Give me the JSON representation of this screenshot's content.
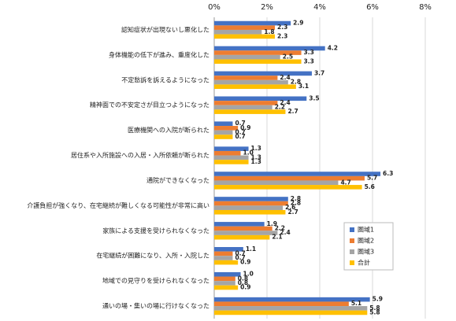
{
  "chart_data": {
    "type": "bar",
    "orientation": "horizontal",
    "categories": [
      "認知症状が出現ないし悪化した",
      "身体機能の低下が進み、重度化した",
      "不定愁訴を訴えるようになった",
      "精神面での不安定さが目立つようになった",
      "医療機関への入院が断られた",
      "居住系や入所施設への入居・入所依頼が断られた",
      "通院ができなくなった",
      "介護負担が強くなり、在宅継続が難しくなる可能性が非常に高い",
      "家族による支援を受けられなくなった",
      "在宅継続が困難になり、入所・入院した",
      "地域での見守りを受けられなくなった",
      "通いの場・集いの場に行けなくなった"
    ],
    "series": [
      {
        "name": "圏域1",
        "color": "#4472c4",
        "values": [
          2.9,
          4.2,
          3.7,
          3.5,
          0.7,
          1.3,
          6.3,
          2.8,
          1.9,
          1.1,
          1.0,
          5.9
        ],
        "value_labels": [
          "2.9",
          "4.2",
          "3.7",
          "3.5",
          "0.7",
          "1.3",
          "6.3",
          "2.8",
          "1.9",
          "1.1",
          "1.0",
          "5.9"
        ]
      },
      {
        "name": "圏域2",
        "color": "#ed7d31",
        "values": [
          2.3,
          3.3,
          2.4,
          2.4,
          0.9,
          1.0,
          5.7,
          2.8,
          2.2,
          0.7,
          0.8,
          5.1
        ],
        "value_labels": [
          "2.3",
          "3.3",
          "2.4",
          "2.4",
          "0.9",
          "1.0",
          "5.7",
          "2.8",
          "2.2",
          "0.7",
          "0.8",
          "5.1"
        ]
      },
      {
        "name": "圏域3",
        "color": "#a5a5a5",
        "values": [
          1.8,
          2.5,
          2.8,
          2.2,
          0.7,
          1.3,
          4.7,
          2.6,
          2.4,
          0.7,
          0.8,
          5.8
        ],
        "value_labels": [
          "1.8",
          "2.5",
          "2.8",
          "2.2",
          "0.7",
          "1.3",
          "4.7",
          "2.6",
          "2.4",
          "0.7",
          "0.8",
          "5.8"
        ]
      },
      {
        "name": "合計",
        "color": "#ffc000",
        "values": [
          2.3,
          3.3,
          3.1,
          2.7,
          0.7,
          1.3,
          5.6,
          2.7,
          2.1,
          0.9,
          0.9,
          5.8
        ],
        "value_labels": [
          "2.3",
          "3.3",
          "3.1",
          "2.7",
          "0.7",
          "1.3",
          "5.6",
          "2.7",
          "2.1",
          "0.9",
          "0.9",
          "5.8"
        ]
      }
    ],
    "xlim": [
      0,
      8
    ],
    "xticks": [
      {
        "value": 0,
        "label": "0%"
      },
      {
        "value": 2,
        "label": "2%"
      },
      {
        "value": 4,
        "label": "4%"
      },
      {
        "value": 6,
        "label": "6%"
      },
      {
        "value": 8,
        "label": "8%"
      }
    ],
    "grid": true,
    "legend_position": "right"
  }
}
